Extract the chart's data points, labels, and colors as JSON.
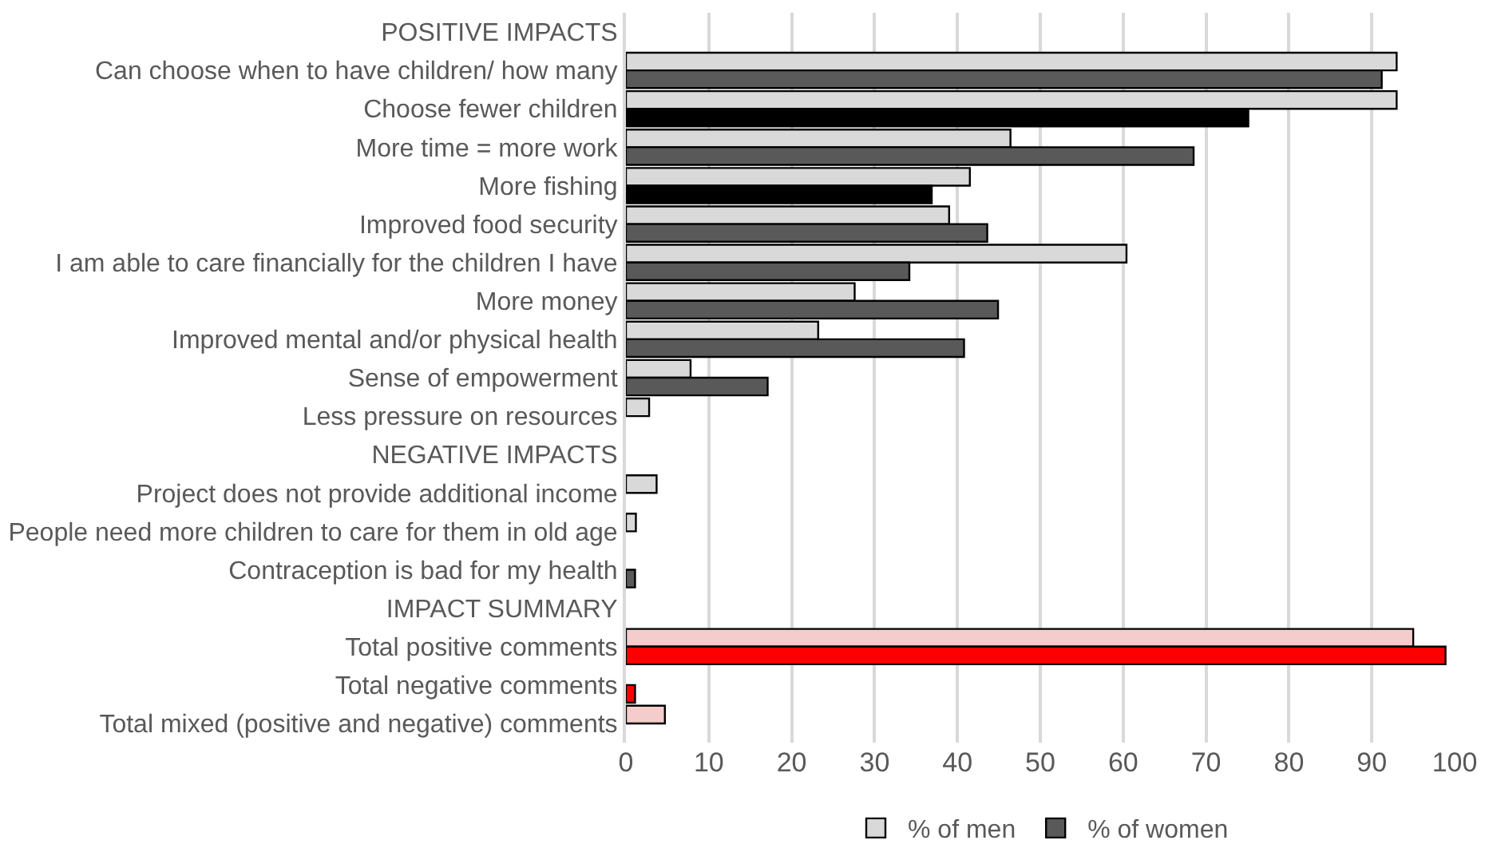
{
  "chart_data": {
    "type": "bar",
    "orientation": "horizontal",
    "categories": [
      "POSITIVE IMPACTS",
      "Can choose when to have children/ how many",
      "Choose fewer children",
      "More time = more work",
      "More fishing",
      "Improved food security",
      "I am able to care financially for the children I have",
      "More money",
      "Improved mental and/or physical health",
      "Sense of empowerment",
      "Less pressure on resources",
      "NEGATIVE IMPACTS",
      "Project does not provide additional income",
      "People need more children to care for them in old age",
      "Contraception is bad for my health",
      "IMPACT SUMMARY",
      "Total positive comments",
      "Total negative comments",
      "Total mixed (positive and negative) comments"
    ],
    "series": [
      {
        "name": "% of men",
        "color": "#d9d9d9",
        "values": [
          null,
          93,
          93,
          46.4,
          41.5,
          39,
          60.4,
          27.6,
          23.2,
          7.8,
          2.8,
          null,
          3.7,
          1.2,
          null,
          null,
          95,
          null,
          4.7
        ],
        "colors": [
          null,
          null,
          null,
          null,
          null,
          null,
          null,
          null,
          null,
          null,
          null,
          null,
          null,
          null,
          null,
          null,
          "#f4cccc",
          "#f4cccc",
          "#f4cccc"
        ]
      },
      {
        "name": "% of women",
        "color": "#595959",
        "values": [
          null,
          91.2,
          75.1,
          68.5,
          36.9,
          43.6,
          34.2,
          44.9,
          40.8,
          17.1,
          null,
          null,
          null,
          null,
          1.1,
          null,
          98.9,
          1.1,
          null
        ],
        "colors": [
          null,
          null,
          "#000000",
          null,
          "#000000",
          null,
          null,
          null,
          null,
          null,
          null,
          null,
          null,
          null,
          null,
          null,
          "#ff0000",
          "#ff0000",
          "#ff0000"
        ]
      }
    ],
    "xlim": [
      0,
      100
    ],
    "xticks": [
      0,
      10,
      20,
      30,
      40,
      50,
      60,
      70,
      80,
      90,
      100
    ],
    "grid": "x",
    "legend": "bottom"
  }
}
